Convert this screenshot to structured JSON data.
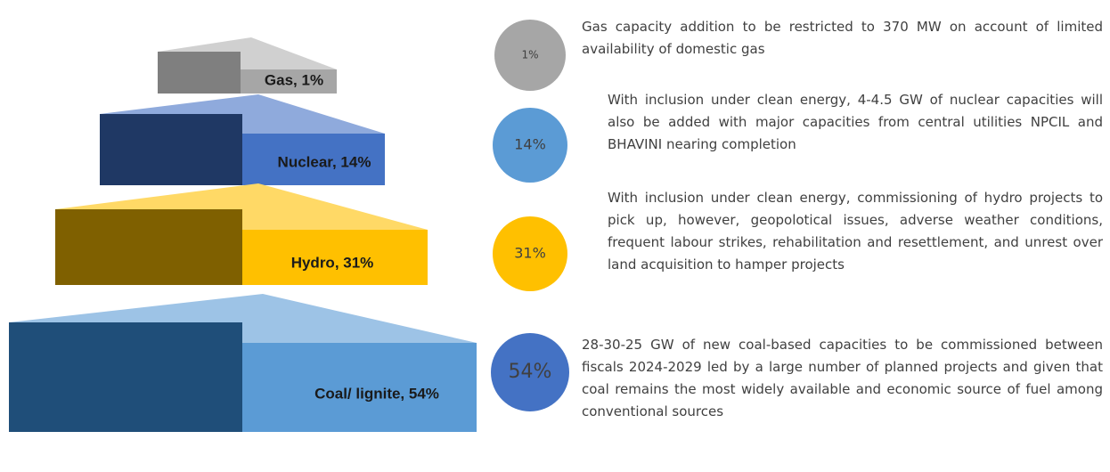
{
  "tiers": [
    {
      "label": "Gas, 1%",
      "badge": "1%",
      "description": "Gas capacity addition to be restricted to 370 MW on account of limited availability of domestic gas"
    },
    {
      "label": "Nuclear, 14%",
      "badge": "14%",
      "description": "With inclusion under clean energy, 4-4.5 GW of nuclear capacities will also be added with major capacities from central utilities NPCIL and BHAVINI nearing completion"
    },
    {
      "label": "Hydro, 31%",
      "badge": "31%",
      "description": "With inclusion under clean energy, commissioning of hydro projects to pick up, however, geopolotical issues, adverse weather conditions, frequent labour strikes, rehabilitation and resettlement, and unrest over land acquisition to hamper projects"
    },
    {
      "label": "Coal/ lignite, 54%",
      "badge": "54%",
      "description": "28-30-25 GW of new coal-based capacities to be commissioned between fiscals 2024-2029 led by a large number of planned projects and given that coal remains the most widely available and economic source of fuel among conventional sources"
    }
  ]
}
